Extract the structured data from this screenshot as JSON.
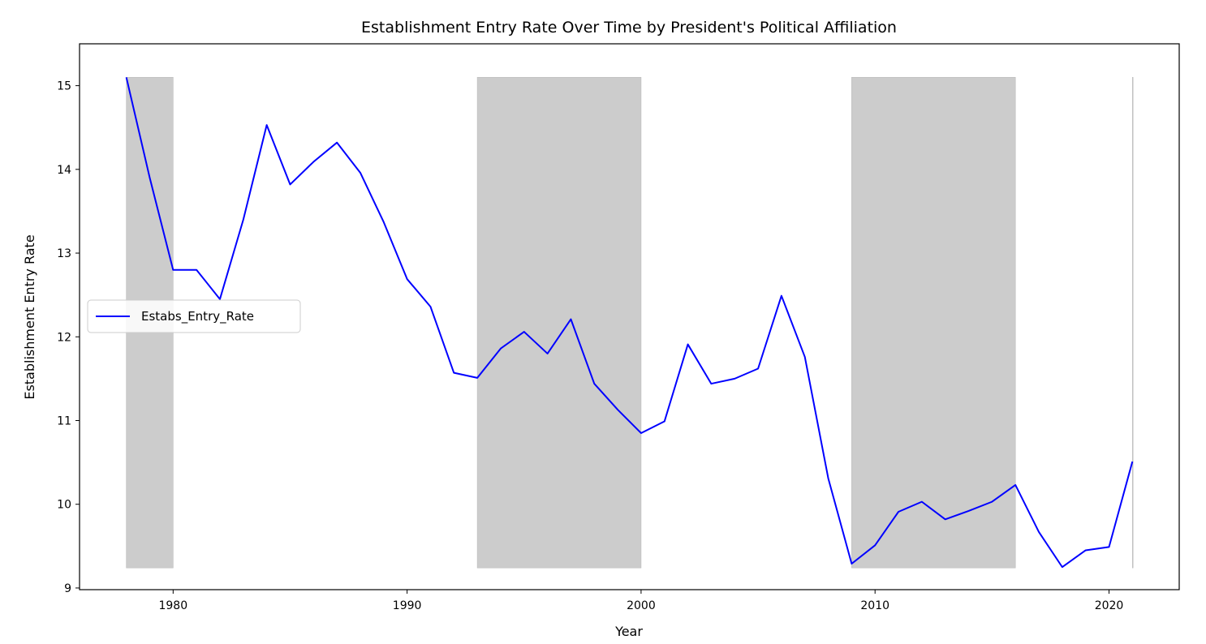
{
  "chart_data": {
    "type": "line",
    "title": "Establishment Entry Rate Over Time by President's Political Affiliation",
    "xlabel": "Year",
    "ylabel": "Establishment Entry Rate",
    "xlim": [
      1976,
      2023
    ],
    "ylim": [
      8.98,
      15.5
    ],
    "xticks": [
      1980,
      1990,
      2000,
      2010,
      2020
    ],
    "yticks": [
      9,
      10,
      11,
      12,
      13,
      14,
      15
    ],
    "grid": false,
    "legend": {
      "placement": "center-left",
      "entries": [
        "Estabs_Entry_Rate"
      ]
    },
    "series": [
      {
        "name": "Estabs_Entry_Rate",
        "color": "#0000ff",
        "x": [
          1978,
          1979,
          1980,
          1981,
          1982,
          1983,
          1984,
          1985,
          1986,
          1987,
          1988,
          1989,
          1990,
          1991,
          1992,
          1993,
          1994,
          1995,
          1996,
          1997,
          1998,
          1999,
          2000,
          2001,
          2002,
          2003,
          2004,
          2005,
          2006,
          2007,
          2008,
          2009,
          2010,
          2011,
          2012,
          2013,
          2014,
          2015,
          2016,
          2017,
          2018,
          2019,
          2020,
          2021
        ],
        "values": [
          15.1,
          13.9,
          12.8,
          12.8,
          12.45,
          13.4,
          14.53,
          13.82,
          14.09,
          14.32,
          13.96,
          13.37,
          12.69,
          12.36,
          11.57,
          11.51,
          11.86,
          12.06,
          11.8,
          12.21,
          11.44,
          11.13,
          10.85,
          10.99,
          11.91,
          11.44,
          11.5,
          11.62,
          12.49,
          11.76,
          10.31,
          9.29,
          9.51,
          9.91,
          10.03,
          9.82,
          9.92,
          10.03,
          10.23,
          9.67,
          9.25,
          9.45,
          9.49,
          10.51
        ]
      }
    ],
    "shaded_spans": [
      {
        "x_start": 1978,
        "x_end": 1980,
        "y_start": 9.24,
        "y_end": 15.1
      },
      {
        "x_start": 1993,
        "x_end": 2000,
        "y_start": 9.24,
        "y_end": 15.1
      },
      {
        "x_start": 2009,
        "x_end": 2016,
        "y_start": 9.24,
        "y_end": 15.1
      },
      {
        "x_start": 2021,
        "x_end": 2021,
        "y_start": 9.24,
        "y_end": 15.1
      }
    ],
    "shade_color": "#cccccc"
  }
}
